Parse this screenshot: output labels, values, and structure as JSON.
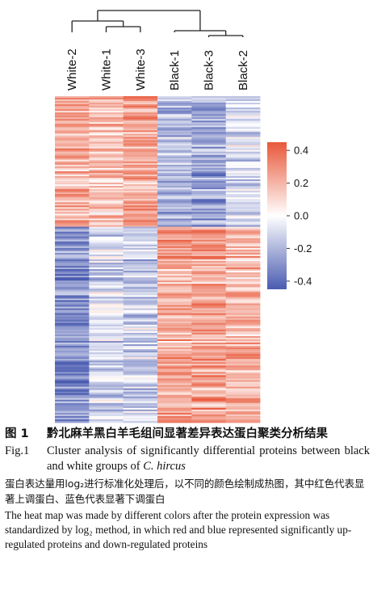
{
  "chart_data": {
    "type": "heatmap",
    "columns": [
      "White-2",
      "White-1",
      "White-3",
      "Black-1",
      "Black-3",
      "Black-2"
    ],
    "n_rows": 200,
    "row_blocks": [
      {
        "rows": 80,
        "profile": [
          0.22,
          0.18,
          0.24,
          -0.18,
          -0.24,
          -0.1
        ]
      },
      {
        "rows": 120,
        "profile": [
          -0.3,
          -0.1,
          -0.12,
          0.22,
          0.24,
          0.18
        ]
      }
    ],
    "colorbar": {
      "ticks": [
        "0.4",
        "0.2",
        "0.0",
        "-0.2",
        "-0.4"
      ],
      "tick_values": [
        0.4,
        0.2,
        0.0,
        -0.2,
        -0.4
      ],
      "range": [
        -0.45,
        0.45
      ],
      "colors": {
        "high": "#e8583a",
        "mid": "#ffffff",
        "low": "#4a5bb0"
      }
    },
    "dendrogram": {
      "groups": [
        [
          "White-2",
          [
            "White-1",
            "White-3"
          ]
        ],
        [
          "Black-1",
          [
            "Black-3",
            "Black-2"
          ]
        ]
      ]
    }
  },
  "caption": {
    "cn_figure_number": "图 1",
    "cn_title": "黔北麻羊黑白羊毛组间显著差异表达蛋白聚类分析结果",
    "en_figure_number": "Fig.1",
    "en_title_prefix": "Cluster analysis of significantly differential proteins between black and white groups of ",
    "en_title_species": "C. hircus",
    "cn_note": "蛋白表达量用log₂进行标准化处理后，以不同的颜色绘制成热图，其中红色代表显著上调蛋白、蓝色代表显著下调蛋白",
    "en_note": "The heat map was made by different colors after the protein expression was standardized by log₂ method, in which red and blue represented significantly up-regulated proteins and down-regulated proteins"
  }
}
